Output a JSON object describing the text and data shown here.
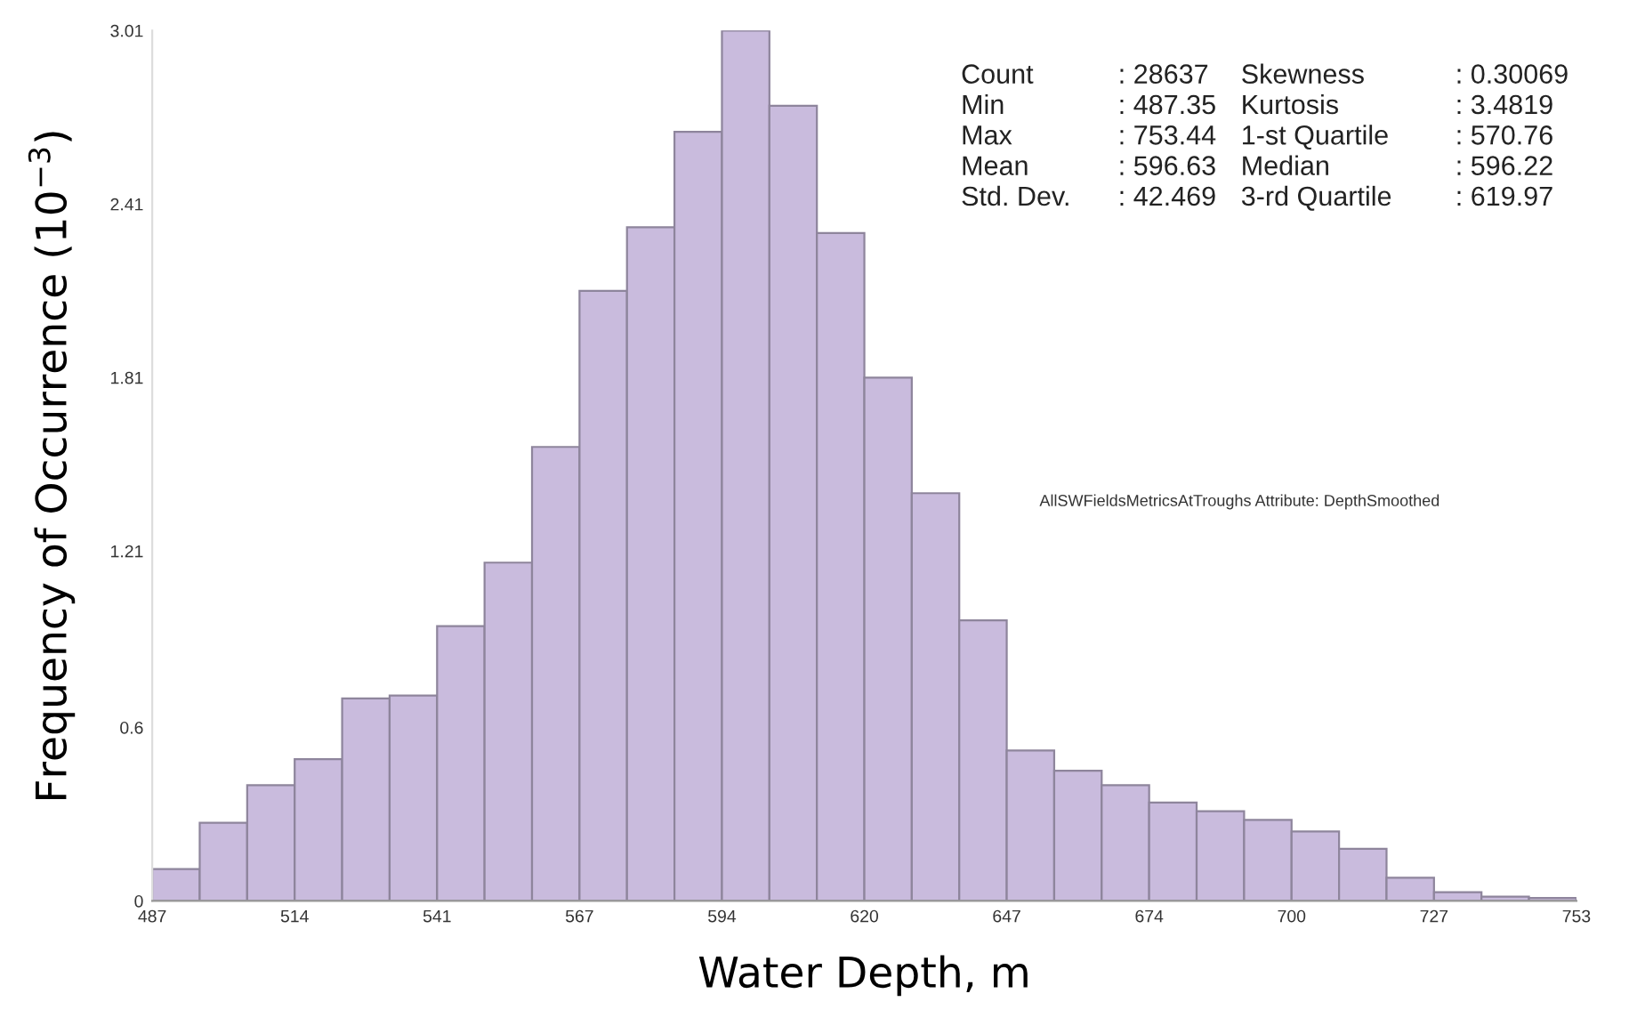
{
  "chart_data": {
    "type": "histogram",
    "xlabel": "Water Depth, m",
    "ylabel": "Frequency of Occurrence (10$^{−3}$)",
    "bins": [
      487.35,
      496.22,
      505.09,
      513.96,
      522.83,
      531.7,
      540.57,
      549.44,
      558.31,
      567.18,
      576.05,
      584.92,
      593.79,
      602.66,
      611.53,
      620.4,
      629.26,
      638.13,
      647.0,
      655.87,
      664.74,
      673.61,
      682.48,
      691.35,
      700.22,
      709.09,
      717.96,
      726.83,
      735.7,
      744.57,
      753.44
    ],
    "values": [
      0.11,
      0.27,
      0.4,
      0.49,
      0.7,
      0.71,
      0.95,
      1.17,
      1.57,
      2.11,
      2.33,
      2.66,
      3.01,
      2.75,
      2.31,
      1.81,
      1.41,
      0.97,
      0.52,
      0.45,
      0.4,
      0.34,
      0.31,
      0.28,
      0.24,
      0.18,
      0.08,
      0.03,
      0.015,
      0.01
    ],
    "color": "#c9bbdd",
    "xlim": [
      487.35,
      753.44
    ],
    "xticks": [
      {
        "value": 487.35,
        "label": "487"
      },
      {
        "value": 513.96,
        "label": "514"
      },
      {
        "value": 540.57,
        "label": "541"
      },
      {
        "value": 567.18,
        "label": "567"
      },
      {
        "value": 593.79,
        "label": "594"
      },
      {
        "value": 620.4,
        "label": "620"
      },
      {
        "value": 647.0,
        "label": "647"
      },
      {
        "value": 673.61,
        "label": "674"
      },
      {
        "value": 700.22,
        "label": "700"
      },
      {
        "value": 726.83,
        "label": "727"
      },
      {
        "value": 753.44,
        "label": "753"
      }
    ],
    "ylim": [
      0,
      3.01
    ],
    "yticks": [
      0,
      0.6,
      1.21,
      1.81,
      2.41,
      3.01
    ],
    "grid": false,
    "legend": false,
    "annotations": [
      "Count",
      ": 28637",
      "Skewness",
      ": 0.30069",
      "Min",
      ": 487.35",
      "Kurtosis",
      ": 3.4819",
      "Max",
      ": 753.44",
      "1-st Quartile",
      ": 570.76",
      "Mean",
      ": 596.63",
      "Median",
      ": 596.22",
      "Std. Dev.",
      ": 42.469",
      "3-rd Quartile",
      ": 619.97",
      "AllSWFieldsMetricsAtTroughs Attribute: DepthSmoothed"
    ]
  }
}
